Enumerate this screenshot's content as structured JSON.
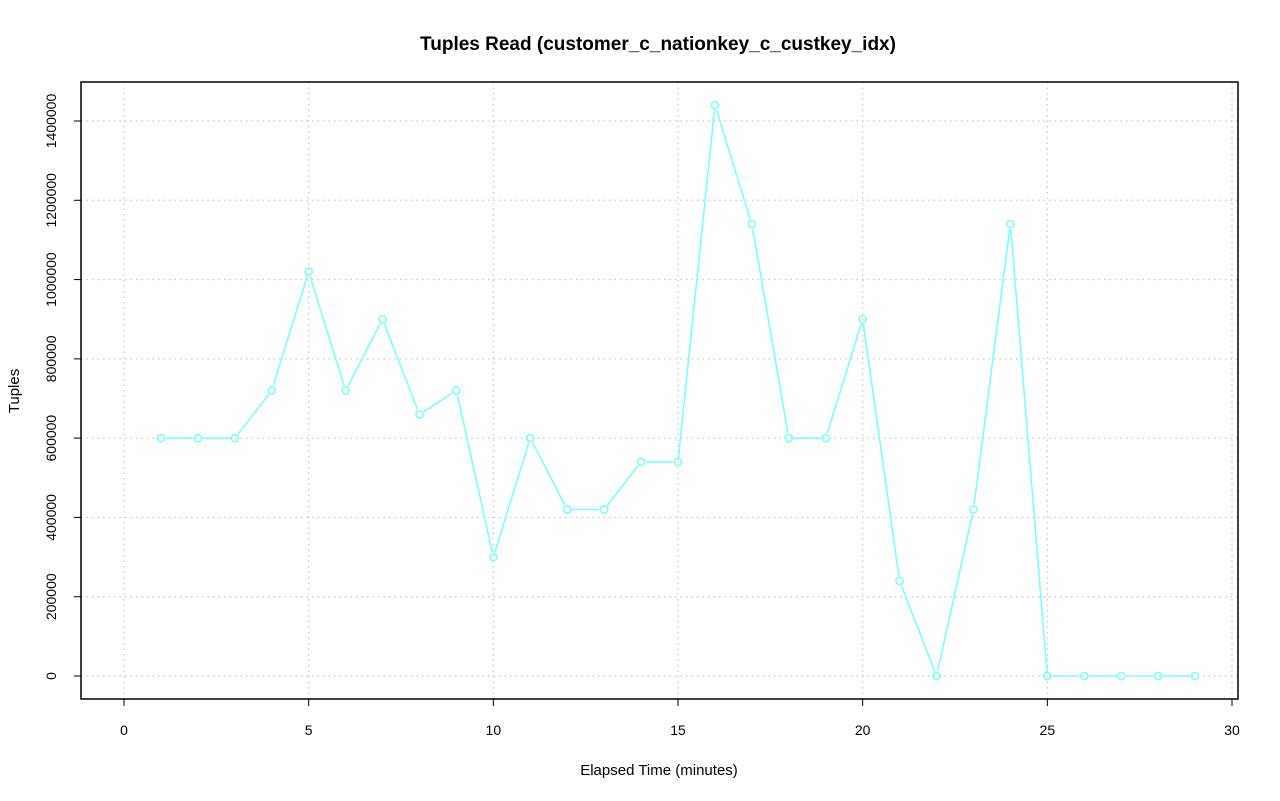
{
  "chart_data": {
    "type": "line",
    "title": "Tuples Read (customer_c_nationkey_c_custkey_idx)",
    "xlabel": "Elapsed Time (minutes)",
    "ylabel": "Tuples",
    "xlim": [
      0,
      30
    ],
    "ylim": [
      0,
      1440000
    ],
    "x_ticks": [
      0,
      5,
      10,
      15,
      20,
      25,
      30
    ],
    "y_ticks": [
      0,
      200000,
      400000,
      600000,
      800000,
      1000000,
      1200000,
      1400000
    ],
    "grid": true,
    "color": "#7fffff",
    "series": [
      {
        "x": [
          1,
          2,
          3,
          4,
          5,
          6,
          7,
          8,
          9,
          10,
          11,
          12,
          13,
          14,
          15,
          16,
          17,
          18,
          19,
          20,
          21,
          22,
          23,
          24,
          25,
          26,
          27,
          28,
          29
        ],
        "values": [
          600000,
          600000,
          600000,
          720000,
          1020000,
          720000,
          900000,
          660000,
          720000,
          300000,
          600000,
          420000,
          420000,
          540000,
          540000,
          1440000,
          1140000,
          600000,
          600000,
          900000,
          240000,
          0,
          420000,
          1140000,
          0,
          0,
          0,
          0,
          0
        ]
      }
    ]
  }
}
